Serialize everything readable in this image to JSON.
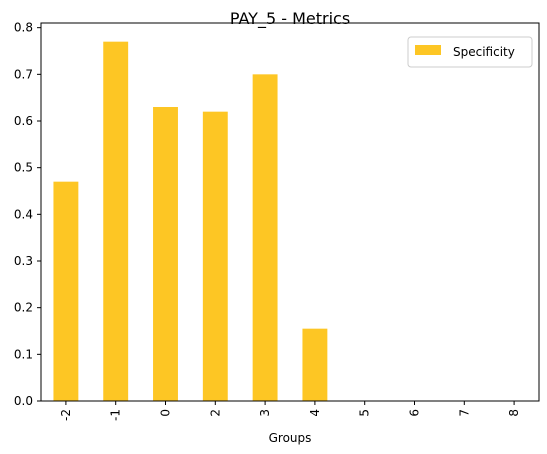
{
  "chart_data": {
    "type": "bar",
    "title": "PAY_5 - Metrics",
    "xlabel": "Groups",
    "ylabel": "",
    "categories": [
      "-2",
      "-1",
      "0",
      "2",
      "3",
      "4",
      "5",
      "6",
      "7",
      "8"
    ],
    "series": [
      {
        "name": "Specificity",
        "values": [
          0.47,
          0.77,
          0.63,
          0.62,
          0.7,
          0.155,
          0,
          0,
          0,
          0
        ],
        "color": "#fdc624"
      }
    ],
    "ylim": [
      0,
      0.81
    ],
    "yticks": [
      "0.0",
      "0.1",
      "0.2",
      "0.3",
      "0.4",
      "0.5",
      "0.6",
      "0.7",
      "0.8"
    ],
    "legend_position": "top-right",
    "grid": false
  }
}
